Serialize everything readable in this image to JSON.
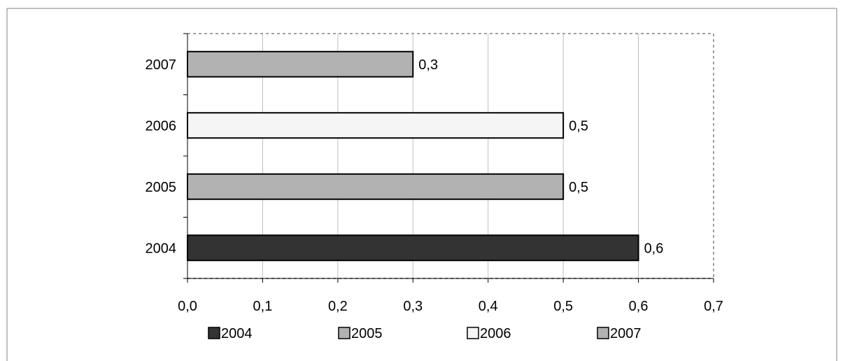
{
  "chart_data": {
    "type": "bar",
    "orientation": "horizontal",
    "title": "",
    "xlabel": "",
    "ylabel": "",
    "xlim": [
      0,
      0.7
    ],
    "x_ticks": [
      "0,0",
      "0,1",
      "0,2",
      "0,3",
      "0,4",
      "0,5",
      "0,6",
      "0,7"
    ],
    "x_tick_values": [
      0,
      0.1,
      0.2,
      0.3,
      0.4,
      0.5,
      0.6,
      0.7
    ],
    "grid": true,
    "legend_position": "bottom",
    "categories": [
      "2004",
      "2005",
      "2006",
      "2007"
    ],
    "series": [
      {
        "name": "2004",
        "values": [
          0.6,
          null,
          null,
          null
        ],
        "labels": [
          "0,6",
          "",
          "",
          ""
        ],
        "color": "#333333"
      },
      {
        "name": "2005",
        "values": [
          null,
          0.5,
          null,
          null
        ],
        "labels": [
          "",
          "0,5",
          "",
          ""
        ],
        "color": "#b2b2b2"
      },
      {
        "name": "2006",
        "values": [
          null,
          null,
          0.5,
          null
        ],
        "labels": [
          "",
          "",
          "0,5",
          ""
        ],
        "color": "#f5f5f5"
      },
      {
        "name": "2007",
        "values": [
          null,
          null,
          null,
          0.3
        ],
        "labels": [
          "",
          "",
          "",
          "0,3"
        ],
        "color": "#b2b2b2"
      }
    ]
  }
}
